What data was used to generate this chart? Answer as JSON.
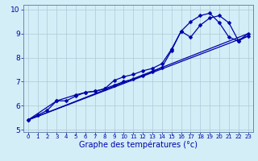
{
  "title": "",
  "xlabel": "Graphe des températures (°c)",
  "xlim": [
    -0.5,
    23.5
  ],
  "ylim": [
    4.9,
    10.2
  ],
  "yticks": [
    5,
    6,
    7,
    8,
    9,
    10
  ],
  "xticks": [
    0,
    1,
    2,
    3,
    4,
    5,
    6,
    7,
    8,
    9,
    10,
    11,
    12,
    13,
    14,
    15,
    16,
    17,
    18,
    19,
    20,
    21,
    22,
    23
  ],
  "bg_color": "#d4eef7",
  "grid_color_major": "#b0c8d8",
  "grid_color_minor": "#c8dce8",
  "line_color": "#0000aa",
  "line1_x": [
    0,
    1,
    2,
    3,
    4,
    5,
    6,
    7,
    8,
    9,
    10,
    11,
    12,
    13,
    14,
    15,
    16,
    17,
    18,
    19,
    20,
    21,
    22,
    23
  ],
  "line1_y": [
    5.4,
    5.6,
    5.8,
    6.2,
    6.2,
    6.4,
    6.55,
    6.6,
    6.7,
    6.85,
    7.0,
    7.1,
    7.25,
    7.4,
    7.6,
    8.3,
    9.1,
    9.5,
    9.75,
    9.85,
    9.45,
    8.85,
    8.7,
    9.0
  ],
  "line2_x": [
    0,
    3,
    5,
    6,
    7,
    8,
    9,
    10,
    11,
    12,
    13,
    14,
    15,
    16,
    17,
    18,
    19,
    20,
    21,
    22,
    23
  ],
  "line2_y": [
    5.4,
    6.2,
    6.45,
    6.55,
    6.6,
    6.7,
    7.05,
    7.2,
    7.3,
    7.45,
    7.55,
    7.75,
    8.35,
    9.1,
    8.85,
    9.35,
    9.65,
    9.75,
    9.45,
    8.7,
    8.9
  ],
  "line3_x": [
    0,
    23
  ],
  "line3_y": [
    5.4,
    8.9
  ],
  "line4_x": [
    0,
    23
  ],
  "line4_y": [
    5.4,
    9.0
  ],
  "markersize": 2.5,
  "linewidth": 0.9,
  "xlabel_fontsize": 7,
  "tick_fontsize_x": 5.0,
  "tick_fontsize_y": 6.5
}
